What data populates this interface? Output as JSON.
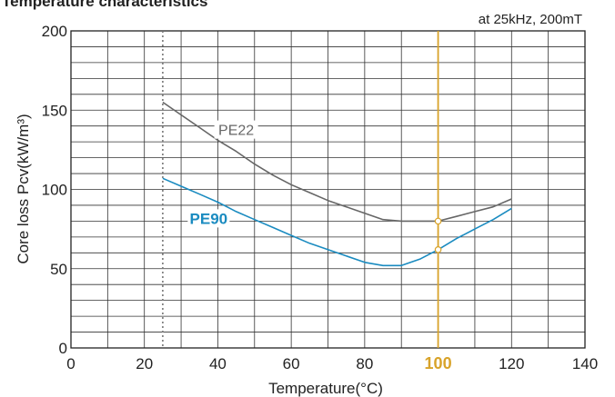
{
  "chart_data": {
    "type": "line",
    "title": "Temperature characteristics",
    "condition": "at 25kHz, 200mT",
    "xlabel": "Temperature(°C)",
    "ylabel": "Core loss Pcv(kW/m³)",
    "xlim": [
      0,
      140
    ],
    "ylim": [
      0,
      200
    ],
    "x_ticks": [
      0,
      20,
      40,
      60,
      80,
      100,
      120,
      140
    ],
    "y_ticks": [
      0,
      50,
      100,
      150,
      200
    ],
    "x_tick_labels": [
      "0",
      "20",
      "40",
      "60",
      "80",
      "100",
      "120",
      "140"
    ],
    "y_tick_labels": [
      "0",
      "50",
      "100",
      "150",
      "200"
    ],
    "x_minor_step": 10,
    "y_minor_step": 10,
    "grid": true,
    "reference_lines": [
      {
        "x": 25,
        "style": "dotted",
        "color": "#777777"
      },
      {
        "x": 100,
        "style": "solid",
        "color": "#d8a32a"
      }
    ],
    "highlight_tick": {
      "value": "100",
      "color": "#d8a32a"
    },
    "series": [
      {
        "name": "PE22",
        "color": "#666666",
        "label_bold": false,
        "x": [
          25,
          30,
          35,
          40,
          45,
          50,
          55,
          60,
          65,
          70,
          75,
          80,
          85,
          90,
          95,
          100,
          105,
          110,
          115,
          120
        ],
        "y": [
          155,
          147,
          139,
          131,
          124,
          116,
          109,
          103,
          98,
          93,
          89,
          85,
          81,
          80,
          80,
          80,
          83,
          86,
          89,
          94
        ]
      },
      {
        "name": "PE90",
        "color": "#1a8bc0",
        "label_bold": true,
        "x": [
          25,
          30,
          35,
          40,
          45,
          50,
          55,
          60,
          65,
          70,
          75,
          80,
          85,
          90,
          95,
          100,
          105,
          110,
          115,
          120
        ],
        "y": [
          107,
          102,
          97,
          92,
          86,
          81,
          76,
          71,
          66,
          62,
          58,
          54,
          52,
          52,
          56,
          62,
          69,
          75,
          81,
          88
        ]
      }
    ],
    "markers": [
      {
        "series": "PE22",
        "x": 100,
        "y": 80
      },
      {
        "series": "PE90",
        "x": 100,
        "y": 62
      }
    ]
  }
}
